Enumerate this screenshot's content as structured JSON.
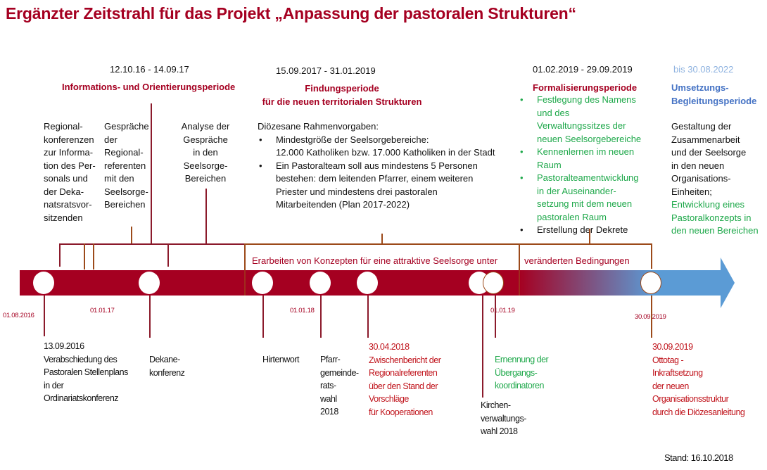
{
  "title": "Ergänzter Zeitstrahl für das Projekt „Anpassung der pastoralen Strukturen“",
  "colors": {
    "dark_red": "#a50021",
    "green": "#1ea84a",
    "blue": "#4472c4",
    "arrow_blue": "#5b9bd5"
  },
  "periods": [
    {
      "dates": "12.10.16 - 14.09.17",
      "name": "Informations- und Orientierungsperiode"
    },
    {
      "dates": "15.09.2017 - 31.01.2019",
      "name_line1": "Findungsperiode",
      "name_line2": "für die neuen territorialen Strukturen"
    },
    {
      "dates": "01.02.2019 - 29.09.2019",
      "name": "Formalisierungsperiode"
    },
    {
      "dates": "bis 30.08.2022",
      "name_line1": "Umsetzungs-",
      "name_line2": "Begleitungsperiode"
    }
  ],
  "upper": {
    "regionalkonferenzen": [
      "Regional-",
      "konferenzen",
      "zur Informa-",
      "tion des Per-",
      "sonals und",
      "der Deka-",
      "natsratsvor-",
      "sitzenden"
    ],
    "gespraeche": [
      "Gespräche",
      "der",
      "Regional-",
      "referenten",
      "mit den",
      "Seelsorge-",
      "Bereichen"
    ],
    "analyse": [
      "Analyse der",
      "Gespräche",
      "in den",
      "Seelsorge-",
      "Bereichen"
    ],
    "rahmen_heading": "Diözesane Rahmenvorgaben:",
    "rahmen_items": [
      [
        "Mindestgröße der Seelsorgebereiche:",
        "12.000 Katholiken bzw. 17.000 Katholiken in der Stadt"
      ],
      [
        "Ein Pastoralteam soll aus mindestens 5 Personen",
        "bestehen: dem leitenden Pfarrer, einem weiteren",
        "Priester und mindestens drei pastoralen",
        "Mitarbeitenden (Plan 2017-2022)"
      ]
    ],
    "formal_items": [
      [
        "Festlegung des Namens",
        "und des",
        "Verwaltungssitzes der",
        "neuen Seelsorgebereiche"
      ],
      [
        "Kennenlernen im neuen",
        "Raum"
      ],
      [
        "Pastoralteamentwicklung",
        "in der Auseinander-",
        "setzung mit dem neuen",
        "pastoralen Raum"
      ]
    ],
    "formal_item_black": "Erstellung der Dekrete",
    "umsetzung_black": [
      "Gestaltung der",
      "Zusammenarbeit",
      "und der Seelsorge",
      "in den neuen",
      "Organisations-",
      "Einheiten;"
    ],
    "umsetzung_green": [
      "Entwicklung eines",
      "Pastoralkonzepts in",
      "den neuen Bereichen"
    ]
  },
  "bracket_label_1": "Erarbeiten von Konzepten für eine attraktive Seelsorge unter",
  "bracket_label_2": "veränderten Bedingungen",
  "axis_dates": [
    "01.08.2016",
    "01.01.17",
    "01.01.18",
    "01.01.19",
    "30.09.2019"
  ],
  "lower": {
    "e1_date": "13.09.2016",
    "e1": [
      "Verabschiedung des",
      "Pastoralen Stellenplans",
      "in der",
      "Ordinariatskonferenz"
    ],
    "e2": [
      "Dekane-",
      "konferenz"
    ],
    "e3": [
      "Hirtenwort"
    ],
    "e4": [
      "Pfarr-",
      "gemeinde-",
      "rats-",
      "wahl",
      "2018"
    ],
    "e5_date": "30.04.2018",
    "e5": [
      "Zwischenbericht der",
      "Regionalreferenten",
      "über den Stand der",
      "Vorschläge",
      "für Kooperationen"
    ],
    "e6": [
      "Kirchen-",
      "verwaltungs-",
      "wahl 2018"
    ],
    "e7": [
      "Ernennung der",
      "Übergangs-",
      "koordinatoren"
    ],
    "e8_date": "30.09.2019",
    "e8": [
      "Ottotag -",
      "Inkraftsetzung",
      "der neuen",
      "Organisationsstruktur",
      "durch die Diözesanleitung"
    ]
  },
  "stand": "Stand: 16.10.2018"
}
